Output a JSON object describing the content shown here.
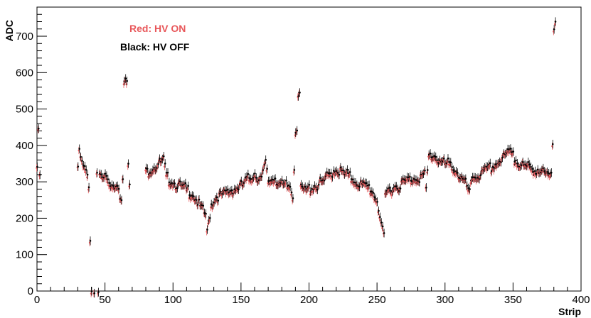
{
  "chart_data": {
    "type": "scatter",
    "xlabel": "Strip",
    "ylabel": "ADC",
    "xlim": [
      0,
      400
    ],
    "ylim": [
      0,
      780
    ],
    "xticks": [
      0,
      50,
      100,
      150,
      200,
      250,
      300,
      350,
      400
    ],
    "yticks": [
      0,
      100,
      200,
      300,
      400,
      500,
      600,
      700
    ],
    "grid": false,
    "legend_placement": "top-left",
    "annotations": [
      {
        "text": "Red: HV ON",
        "color": "#e8575a"
      },
      {
        "text": "Black: HV OFF",
        "color": "#000000"
      }
    ],
    "series": [
      {
        "color": "#e8575a",
        "error_bar": 10,
        "note_offset": -7
      },
      {
        "color": "#000000",
        "error_bar": 12,
        "note_offset": 0
      }
    ],
    "profile_points": [
      [
        0,
        345
      ],
      [
        1,
        450
      ],
      [
        2,
        330
      ],
      [
        30,
        340
      ],
      [
        31,
        390
      ],
      [
        35,
        340
      ],
      [
        38,
        300
      ],
      [
        40,
        0
      ],
      [
        42,
        0
      ],
      [
        44,
        340
      ],
      [
        48,
        320
      ],
      [
        50,
        325
      ],
      [
        55,
        300
      ],
      [
        59,
        310
      ],
      [
        61,
        265
      ],
      [
        62,
        250
      ],
      [
        63,
        320
      ],
      [
        64,
        575
      ],
      [
        66,
        575
      ],
      [
        67,
        350
      ],
      [
        68,
        310
      ],
      [
        80,
        335
      ],
      [
        93,
        370
      ],
      [
        95,
        320
      ],
      [
        105,
        300
      ],
      [
        115,
        275
      ],
      [
        124,
        220
      ],
      [
        125,
        170
      ],
      [
        128,
        245
      ],
      [
        132,
        270
      ],
      [
        140,
        280
      ],
      [
        150,
        300
      ],
      [
        160,
        330
      ],
      [
        165,
        320
      ],
      [
        168,
        360
      ],
      [
        170,
        310
      ],
      [
        175,
        320
      ],
      [
        180,
        300
      ],
      [
        186,
        295
      ],
      [
        188,
        270
      ],
      [
        190,
        435
      ],
      [
        192,
        540
      ],
      [
        193,
        290
      ],
      [
        198,
        285
      ],
      [
        210,
        310
      ],
      [
        220,
        345
      ],
      [
        225,
        335
      ],
      [
        235,
        310
      ],
      [
        245,
        290
      ],
      [
        250,
        260
      ],
      [
        254,
        180
      ],
      [
        255,
        260
      ],
      [
        258,
        285
      ],
      [
        270,
        310
      ],
      [
        285,
        330
      ],
      [
        286,
        290
      ],
      [
        288,
        380
      ],
      [
        292,
        380
      ],
      [
        300,
        360
      ],
      [
        306,
        350
      ],
      [
        316,
        300
      ],
      [
        318,
        275
      ],
      [
        320,
        320
      ],
      [
        335,
        350
      ],
      [
        348,
        395
      ],
      [
        350,
        395
      ],
      [
        351,
        370
      ],
      [
        360,
        350
      ],
      [
        370,
        340
      ],
      [
        378,
        320
      ],
      [
        379,
        405
      ],
      [
        380,
        720
      ]
    ],
    "gaps": [
      [
        3,
        29
      ],
      [
        40,
        43
      ],
      [
        69,
        79
      ]
    ],
    "points_special": [
      [
        0,
        345
      ],
      [
        1,
        450
      ],
      [
        40,
        0
      ],
      [
        42,
        0
      ],
      [
        45,
        0
      ],
      [
        64,
        575
      ],
      [
        65,
        585
      ],
      [
        66,
        575
      ],
      [
        67,
        350
      ],
      [
        125,
        170
      ],
      [
        190,
        435
      ],
      [
        191,
        445
      ],
      [
        192,
        540
      ],
      [
        193,
        550
      ],
      [
        254,
        180
      ],
      [
        255,
        165
      ],
      [
        379,
        405
      ],
      [
        380,
        720
      ],
      [
        381,
        740
      ]
    ]
  }
}
